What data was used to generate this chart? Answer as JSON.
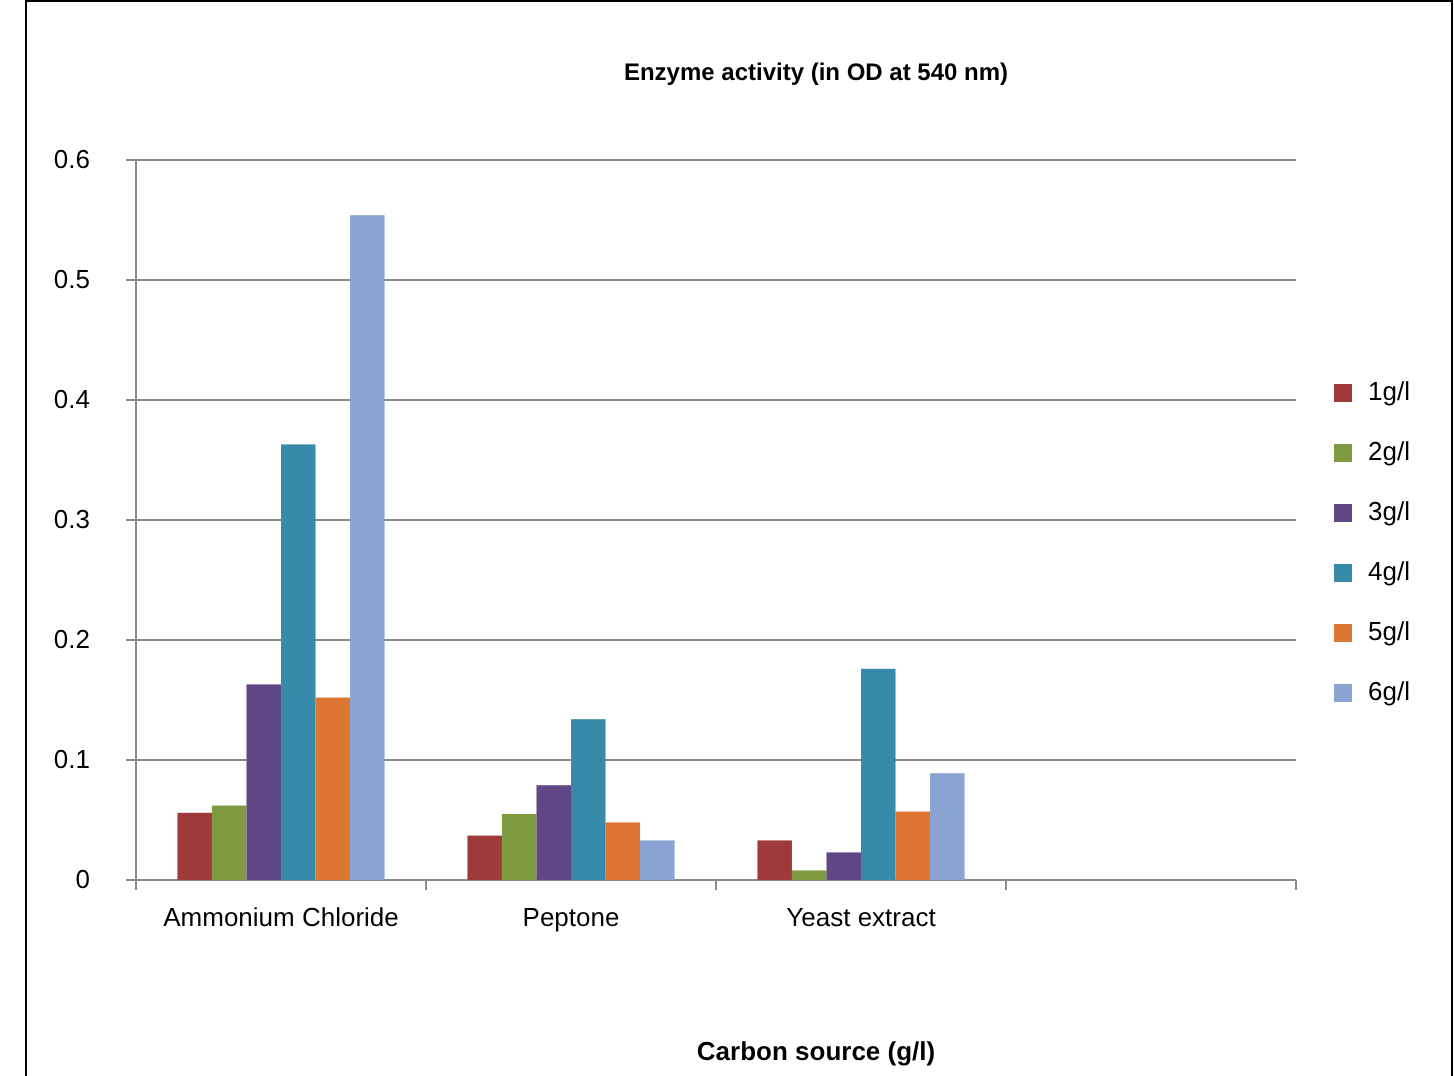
{
  "chart_data": {
    "type": "bar",
    "title": "Enzyme activity (in OD at 540 nm)",
    "xlabel": "Carbon source (g/l)",
    "categories": [
      "Ammonium Chloride",
      "Peptone",
      "Yeast extract",
      null
    ],
    "series": [
      {
        "name": "1g/l",
        "color": "#a0393a",
        "values": [
          0.056,
          0.037,
          0.033,
          null
        ]
      },
      {
        "name": "2g/l",
        "color": "#7e9b41",
        "values": [
          0.062,
          0.055,
          0.008,
          null
        ]
      },
      {
        "name": "3g/l",
        "color": "#614785",
        "values": [
          0.163,
          0.079,
          0.023,
          null
        ]
      },
      {
        "name": "4g/l",
        "color": "#378ba8",
        "values": [
          0.363,
          0.134,
          0.176,
          null
        ]
      },
      {
        "name": "5g/l",
        "color": "#dd7633",
        "values": [
          0.152,
          0.048,
          0.057,
          null
        ]
      },
      {
        "name": "6g/l",
        "color": "#89a3d2",
        "values": [
          0.554,
          0.033,
          0.089,
          null
        ]
      }
    ],
    "ylim": [
      0,
      0.6
    ],
    "yticks": [
      0,
      0.1,
      0.2,
      0.3,
      0.4,
      0.5,
      0.6
    ],
    "grid": "y",
    "legend": "right"
  }
}
